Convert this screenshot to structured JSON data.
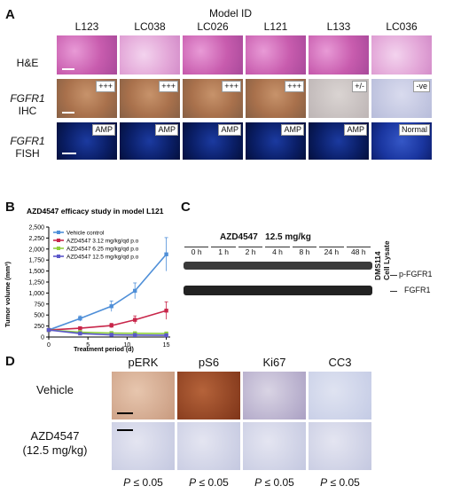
{
  "panel_a": {
    "label": "A",
    "title": "Model ID",
    "models": [
      "L123",
      "LC038",
      "LC026",
      "L121",
      "L133",
      "LC036"
    ],
    "rows": {
      "he": "H&E",
      "ihc_gene": "FGFR1",
      "ihc": "IHC",
      "fish_gene": "FGFR1",
      "fish": "FISH"
    },
    "ihc_scores": [
      "+++",
      "+++",
      "+++",
      "+++",
      "+/-",
      "-ve"
    ],
    "fish_status": [
      "AMP",
      "AMP",
      "AMP",
      "AMP",
      "AMP",
      "Normal"
    ]
  },
  "panel_b": {
    "label": "B",
    "chart_data": {
      "type": "line",
      "title": "AZD4547 efficacy study in model L121",
      "xlabel": "Treatment period (d)",
      "ylabel": "Tumor volume (mm³)",
      "x": [
        0,
        4,
        8,
        11,
        15
      ],
      "xticks": [
        0,
        5,
        10,
        15
      ],
      "yticks": [
        0,
        250,
        500,
        750,
        1000,
        1250,
        1500,
        1750,
        2000,
        2250,
        2500
      ],
      "yticklabels": [
        "0",
        "250",
        "500",
        "750",
        "1,000",
        "1,250",
        "1,500",
        "1,750",
        "2,000",
        "2,250",
        "2,500"
      ],
      "xlim": [
        0,
        15.5
      ],
      "ylim": [
        0,
        2500
      ],
      "series": [
        {
          "name": "Vehicle control",
          "color": "#4f8fd8",
          "values": [
            160,
            420,
            700,
            1050,
            1880
          ],
          "err": [
            30,
            60,
            120,
            180,
            380
          ]
        },
        {
          "name": "AZD4547 3.12 mg/kg/qd p.o",
          "color": "#c8264a",
          "values": [
            160,
            200,
            260,
            390,
            600
          ],
          "err": [
            20,
            30,
            50,
            90,
            200
          ]
        },
        {
          "name": "AZD4547 6.25 mg/kg/qd p.o",
          "color": "#8fcf3c",
          "values": [
            160,
            110,
            90,
            85,
            80
          ],
          "err": [
            20,
            15,
            15,
            15,
            15
          ]
        },
        {
          "name": "AZD4547 12.5 mg/kg/qd p.o",
          "color": "#5b57c9",
          "values": [
            160,
            80,
            50,
            45,
            40
          ],
          "err": [
            20,
            15,
            10,
            10,
            10
          ]
        }
      ]
    }
  },
  "panel_c": {
    "label": "C",
    "title": "AZD4547",
    "dose": "12.5 mg/kg",
    "timepoints": [
      "0 h",
      "1 h",
      "2 h",
      "4 h",
      "8 h",
      "24 h",
      "48 h"
    ],
    "control": "DMS114",
    "control2": "Cell Lysate",
    "bands": [
      "p-FGFR1",
      "FGFR1"
    ]
  },
  "panel_d": {
    "label": "D",
    "stains": [
      "pERK",
      "pS6",
      "Ki67",
      "CC3"
    ],
    "rows": [
      "Vehicle",
      "AZD4547",
      "(12.5 mg/kg)"
    ],
    "pvalue_label": "P",
    "pvalue_rest": " ≤ 0.05",
    "pvalues": [
      "≤ 0.05",
      "≤ 0.05",
      "≤ 0.05",
      "≤ 0.05"
    ]
  }
}
